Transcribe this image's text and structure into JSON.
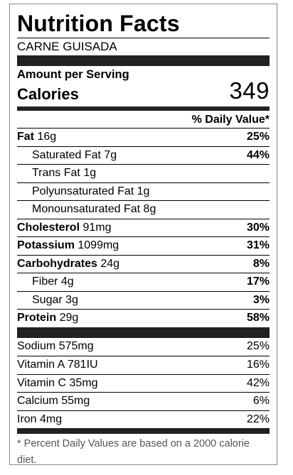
{
  "label": {
    "title": "Nutrition Facts",
    "recipe_name": "CARNE GUISADA",
    "amount_per_serving": "Amount per Serving",
    "calories_label": "Calories",
    "calories_value": "349",
    "daily_value_header": "% Daily Value*",
    "rows": [
      {
        "name": "Fat",
        "amount": "16g",
        "pct": "25%"
      },
      {
        "name": "Saturated Fat",
        "amount": "7g",
        "pct": "44%"
      },
      {
        "name": "Trans Fat",
        "amount": "1g",
        "pct": ""
      },
      {
        "name": "Polyunsaturated Fat",
        "amount": "1g",
        "pct": ""
      },
      {
        "name": "Monounsaturated Fat",
        "amount": "8g",
        "pct": ""
      },
      {
        "name": "Cholesterol",
        "amount": "91mg",
        "pct": "30%"
      },
      {
        "name": "Potassium",
        "amount": "1099mg",
        "pct": "31%"
      },
      {
        "name": "Carbohydrates",
        "amount": "24g",
        "pct": "8%"
      },
      {
        "name": "Fiber",
        "amount": "4g",
        "pct": "17%"
      },
      {
        "name": "Sugar",
        "amount": "3g",
        "pct": "3%"
      },
      {
        "name": "Protein",
        "amount": "29g",
        "pct": "58%"
      }
    ],
    "vitamins": [
      {
        "name": "Sodium",
        "amount": "575mg",
        "pct": "25%"
      },
      {
        "name": "Vitamin A",
        "amount": "781IU",
        "pct": "16%"
      },
      {
        "name": "Vitamin C",
        "amount": "35mg",
        "pct": "42%"
      },
      {
        "name": "Calcium",
        "amount": "55mg",
        "pct": "6%"
      },
      {
        "name": "Iron",
        "amount": "4mg",
        "pct": "22%"
      }
    ],
    "footnote": "* Percent Daily Values are based on a 2000 calorie diet."
  }
}
